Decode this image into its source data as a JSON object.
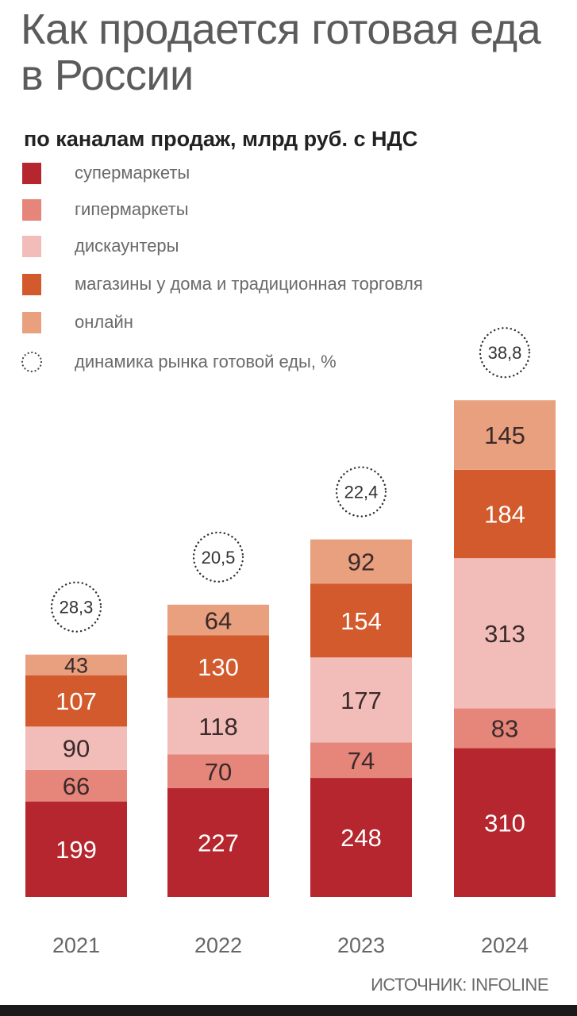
{
  "title": "Как продается готовая еда в России",
  "subtitle": "по каналам продаж, млрд руб. с НДС",
  "source": "ИСТОЧНИК: INFOLINE",
  "legend": [
    {
      "label": "супермаркеты",
      "color": "#b5262e"
    },
    {
      "label": "гипермаркеты",
      "color": "#e6857a"
    },
    {
      "label": "дискаунтеры",
      "color": "#f2bdb9"
    },
    {
      "label": "магазины у дома и традиционная торговля",
      "color": "#d35a2c"
    },
    {
      "label": "онлайн",
      "color": "#e8a07f"
    },
    {
      "label": "динамика рынка готовой еды, %",
      "icon": "dotted-circle-icon"
    }
  ],
  "chart_data": {
    "type": "bar",
    "stacked": true,
    "categories": [
      "2021",
      "2022",
      "2023",
      "2024"
    ],
    "series": [
      {
        "name": "супермаркеты",
        "color": "#b5262e",
        "values": [
          199,
          227,
          248,
          310
        ]
      },
      {
        "name": "гипермаркеты",
        "color": "#e6857a",
        "values": [
          66,
          70,
          74,
          83
        ]
      },
      {
        "name": "дискаунтеры",
        "color": "#f2bdb9",
        "values": [
          90,
          118,
          177,
          313
        ]
      },
      {
        "name": "магазины у дома и традиционная торговля",
        "color": "#d35a2c",
        "values": [
          107,
          130,
          154,
          184
        ]
      },
      {
        "name": "онлайн",
        "color": "#e8a07f",
        "values": [
          43,
          64,
          92,
          145
        ]
      }
    ],
    "growth": {
      "name": "динамика рынка готовой еды, %",
      "values": [
        "28,3",
        "20,5",
        "22,4",
        "38,8"
      ]
    }
  }
}
